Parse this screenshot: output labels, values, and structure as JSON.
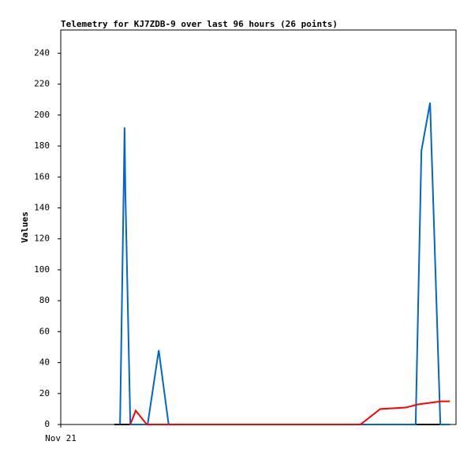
{
  "chart_data": {
    "type": "line",
    "title": "Telemetry for KJ7ZDB-9 over last 96 hours (26 points)",
    "y_label": "Values",
    "xlim": [
      0,
      96
    ],
    "xticks": [
      {
        "value": 0,
        "label": "Nov 21"
      }
    ],
    "ylim": [
      0,
      255
    ],
    "yticks": [
      0,
      20,
      40,
      60,
      80,
      100,
      120,
      140,
      160,
      180,
      200,
      220,
      240
    ],
    "series": [
      {
        "color": "#000000",
        "x": [
          13.0,
          94.5
        ],
        "values": [
          0,
          0
        ]
      },
      {
        "color": "#0066cc",
        "x": [
          14.4,
          15.3,
          15.5,
          15.7,
          16.9,
          21.1,
          23.8,
          26.2,
          86.2,
          87.6,
          89.7,
          92.2,
          94.5
        ],
        "values": [
          0,
          155,
          192,
          150,
          0,
          0,
          48,
          0,
          0,
          177,
          208,
          0,
          0
        ]
      },
      {
        "color": "#ff0000",
        "x": [
          16.9,
          18.2,
          20.9,
          72.8,
          77.6,
          81.0,
          83.9,
          86.8,
          89.7,
          92.5,
          94.5
        ],
        "values": [
          0,
          9,
          0,
          0,
          10,
          10.5,
          11,
          13,
          14,
          15,
          15
        ]
      }
    ]
  }
}
